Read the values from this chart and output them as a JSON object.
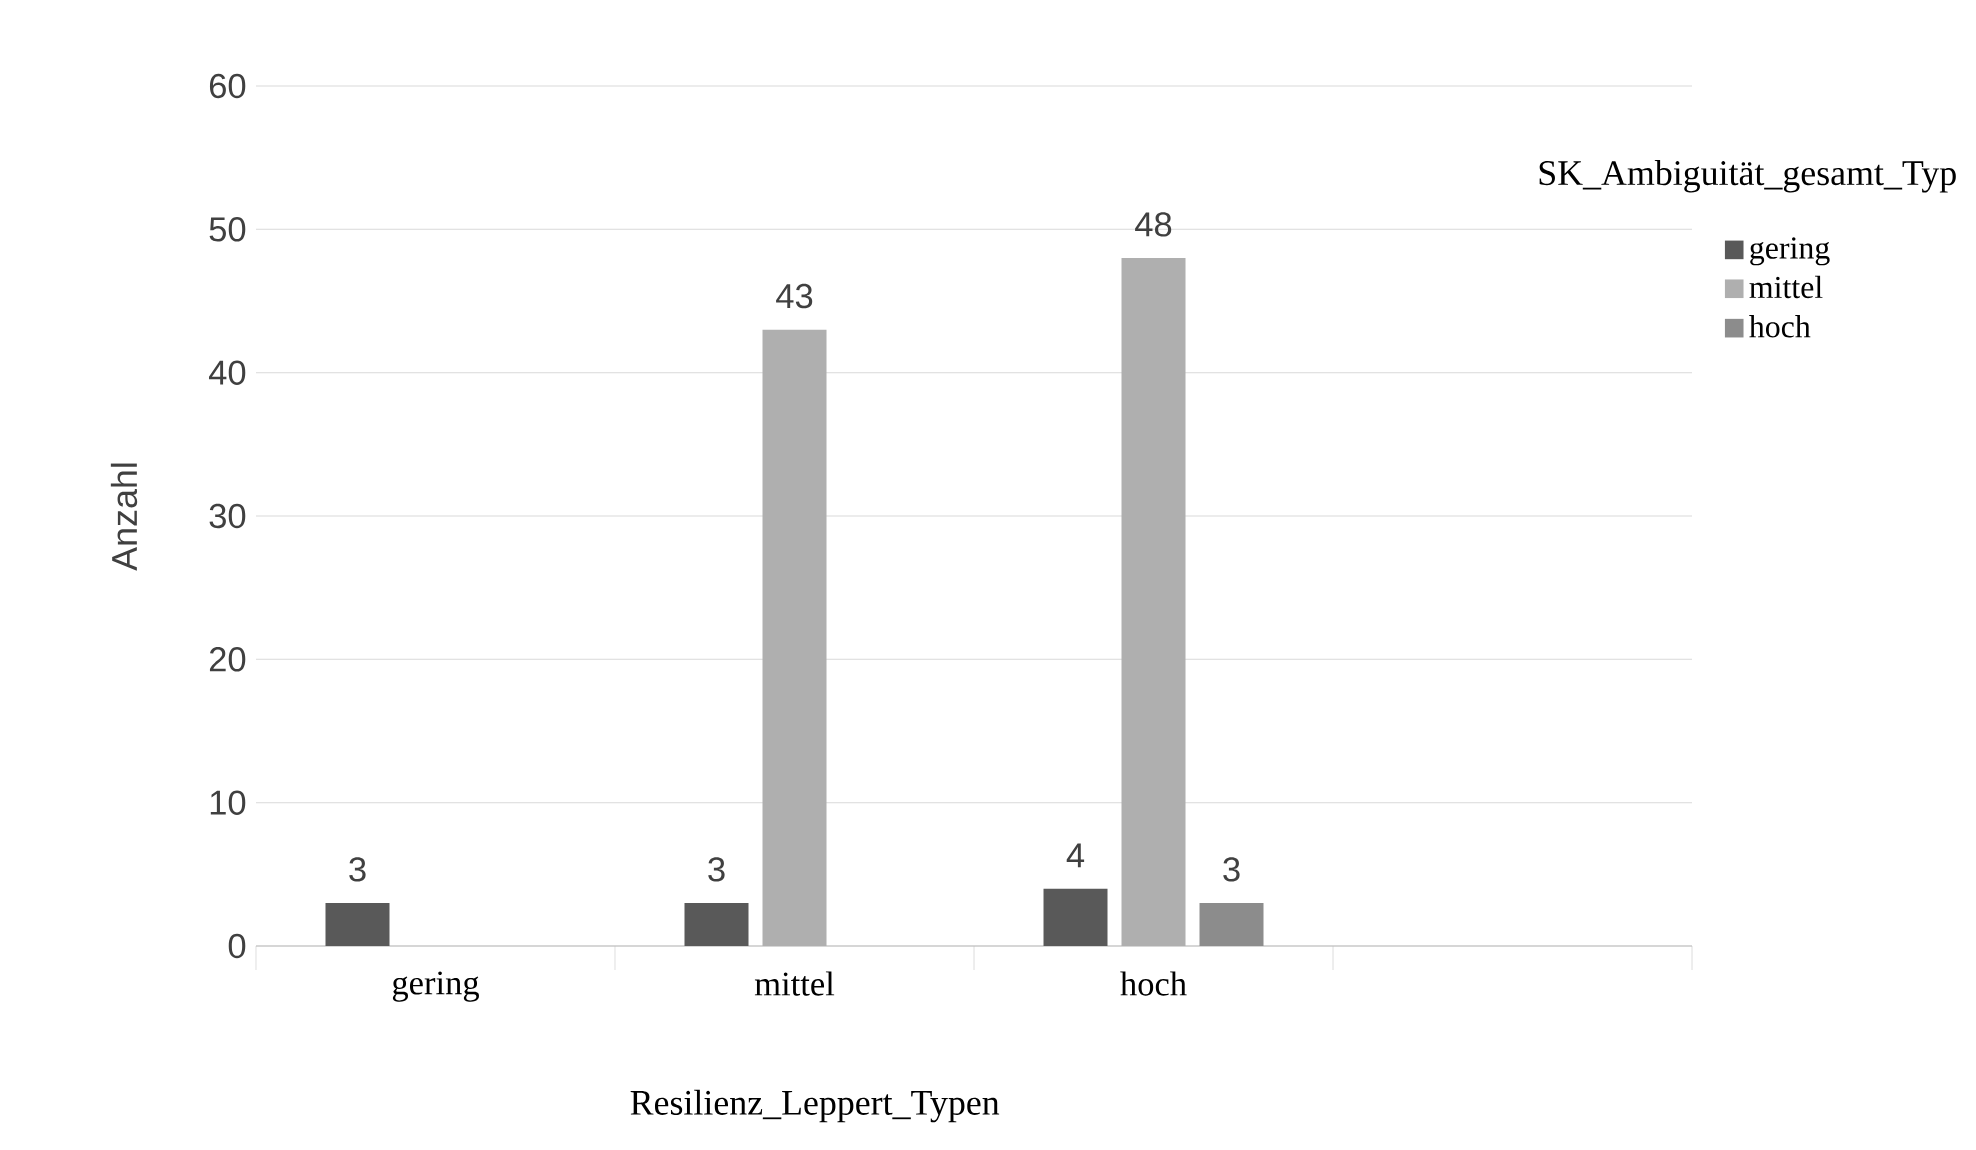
{
  "chart_data": {
    "type": "bar",
    "xlabel": "Resilienz_Leppert_Typen",
    "ylabel": "Anzahl",
    "legend_title": "SK_Ambiguität_gesamt_Typ",
    "categories": [
      "gering",
      "mittel",
      "hoch",
      null
    ],
    "series": [
      {
        "name": "gering",
        "color": "#595959",
        "values": [
          3,
          3,
          4,
          null
        ]
      },
      {
        "name": "mittel",
        "color": "#afafaf",
        "values": [
          null,
          43,
          48,
          null
        ]
      },
      {
        "name": "hoch",
        "color": "#8c8c8c",
        "values": [
          null,
          null,
          3,
          null
        ]
      }
    ],
    "ylim": [
      0,
      60
    ],
    "yticks": [
      0,
      10,
      20,
      30,
      40,
      50,
      60
    ],
    "grid": "y",
    "legend": "right",
    "data_labels": true
  }
}
